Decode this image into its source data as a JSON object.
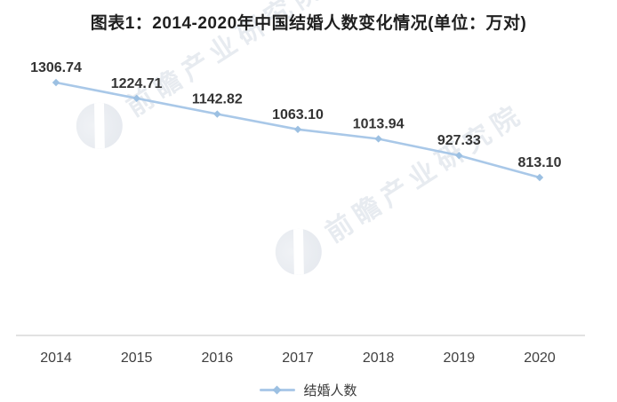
{
  "title": "图表1：2014-2020年中国结婚人数变化情况(单位：万对)",
  "watermark": {
    "text": "前瞻产业研究院"
  },
  "legend": {
    "label": "结婚人数"
  },
  "chart_data": {
    "type": "line",
    "title": "图表1：2014-2020年中国结婚人数变化情况(单位：万对)",
    "unit": "万对",
    "categories": [
      "2014",
      "2015",
      "2016",
      "2017",
      "2018",
      "2019",
      "2020"
    ],
    "series": [
      {
        "name": "结婚人数",
        "values": [
          1306.74,
          1224.71,
          1142.82,
          1063.1,
          1013.94,
          927.33,
          813.1
        ]
      }
    ],
    "data_labels": [
      "1306.74",
      "1224.71",
      "1142.82",
      "1063.10",
      "1013.94",
      "927.33",
      "813.10"
    ],
    "xlabel": "",
    "ylabel": "",
    "grid": false,
    "y_axis_visible": false,
    "legend_position": "bottom",
    "line_color": "#a9c8e8",
    "marker_color": "#9cc0e2",
    "axis_color": "#d9d9d9",
    "label_color": "#333333",
    "tick_color": "#3f3f3f"
  }
}
